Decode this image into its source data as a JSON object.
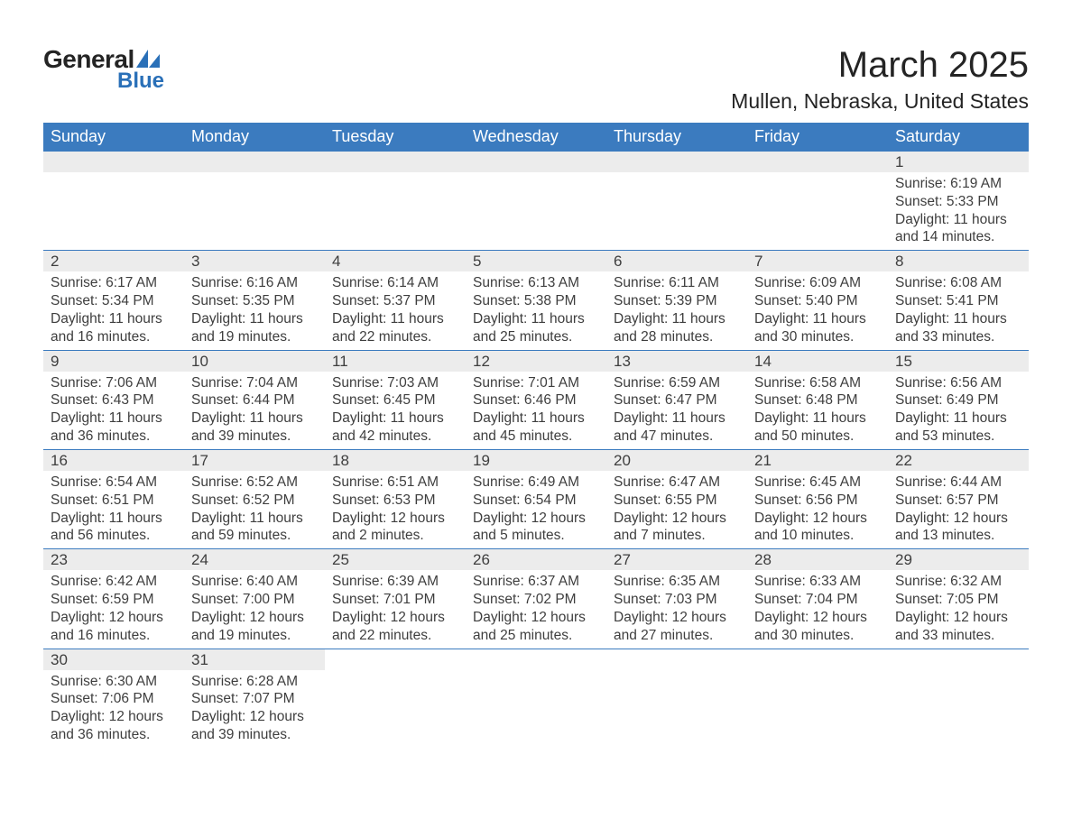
{
  "logo": {
    "text_general": "General",
    "text_blue": "Blue",
    "icon_color": "#2a70b8"
  },
  "title": {
    "month": "March 2025",
    "location": "Mullen, Nebraska, United States"
  },
  "colors": {
    "header_bg": "#3b7bbf",
    "header_text": "#ffffff",
    "daynum_bg": "#ececec",
    "text": "#3e3e3e",
    "divider": "#3b7bbf",
    "page_bg": "#ffffff"
  },
  "layout": {
    "columns": 7,
    "rows": 6,
    "cell_font_size_pt": 11,
    "header_font_size_pt": 13,
    "title_font_size_pt": 30,
    "location_font_size_pt": 17
  },
  "day_headers": [
    "Sunday",
    "Monday",
    "Tuesday",
    "Wednesday",
    "Thursday",
    "Friday",
    "Saturday"
  ],
  "weeks": [
    [
      {
        "empty": true
      },
      {
        "empty": true
      },
      {
        "empty": true
      },
      {
        "empty": true
      },
      {
        "empty": true
      },
      {
        "empty": true
      },
      {
        "num": "1",
        "sunrise": "Sunrise: 6:19 AM",
        "sunset": "Sunset: 5:33 PM",
        "daylight1": "Daylight: 11 hours",
        "daylight2": "and 14 minutes."
      }
    ],
    [
      {
        "num": "2",
        "sunrise": "Sunrise: 6:17 AM",
        "sunset": "Sunset: 5:34 PM",
        "daylight1": "Daylight: 11 hours",
        "daylight2": "and 16 minutes."
      },
      {
        "num": "3",
        "sunrise": "Sunrise: 6:16 AM",
        "sunset": "Sunset: 5:35 PM",
        "daylight1": "Daylight: 11 hours",
        "daylight2": "and 19 minutes."
      },
      {
        "num": "4",
        "sunrise": "Sunrise: 6:14 AM",
        "sunset": "Sunset: 5:37 PM",
        "daylight1": "Daylight: 11 hours",
        "daylight2": "and 22 minutes."
      },
      {
        "num": "5",
        "sunrise": "Sunrise: 6:13 AM",
        "sunset": "Sunset: 5:38 PM",
        "daylight1": "Daylight: 11 hours",
        "daylight2": "and 25 minutes."
      },
      {
        "num": "6",
        "sunrise": "Sunrise: 6:11 AM",
        "sunset": "Sunset: 5:39 PM",
        "daylight1": "Daylight: 11 hours",
        "daylight2": "and 28 minutes."
      },
      {
        "num": "7",
        "sunrise": "Sunrise: 6:09 AM",
        "sunset": "Sunset: 5:40 PM",
        "daylight1": "Daylight: 11 hours",
        "daylight2": "and 30 minutes."
      },
      {
        "num": "8",
        "sunrise": "Sunrise: 6:08 AM",
        "sunset": "Sunset: 5:41 PM",
        "daylight1": "Daylight: 11 hours",
        "daylight2": "and 33 minutes."
      }
    ],
    [
      {
        "num": "9",
        "sunrise": "Sunrise: 7:06 AM",
        "sunset": "Sunset: 6:43 PM",
        "daylight1": "Daylight: 11 hours",
        "daylight2": "and 36 minutes."
      },
      {
        "num": "10",
        "sunrise": "Sunrise: 7:04 AM",
        "sunset": "Sunset: 6:44 PM",
        "daylight1": "Daylight: 11 hours",
        "daylight2": "and 39 minutes."
      },
      {
        "num": "11",
        "sunrise": "Sunrise: 7:03 AM",
        "sunset": "Sunset: 6:45 PM",
        "daylight1": "Daylight: 11 hours",
        "daylight2": "and 42 minutes."
      },
      {
        "num": "12",
        "sunrise": "Sunrise: 7:01 AM",
        "sunset": "Sunset: 6:46 PM",
        "daylight1": "Daylight: 11 hours",
        "daylight2": "and 45 minutes."
      },
      {
        "num": "13",
        "sunrise": "Sunrise: 6:59 AM",
        "sunset": "Sunset: 6:47 PM",
        "daylight1": "Daylight: 11 hours",
        "daylight2": "and 47 minutes."
      },
      {
        "num": "14",
        "sunrise": "Sunrise: 6:58 AM",
        "sunset": "Sunset: 6:48 PM",
        "daylight1": "Daylight: 11 hours",
        "daylight2": "and 50 minutes."
      },
      {
        "num": "15",
        "sunrise": "Sunrise: 6:56 AM",
        "sunset": "Sunset: 6:49 PM",
        "daylight1": "Daylight: 11 hours",
        "daylight2": "and 53 minutes."
      }
    ],
    [
      {
        "num": "16",
        "sunrise": "Sunrise: 6:54 AM",
        "sunset": "Sunset: 6:51 PM",
        "daylight1": "Daylight: 11 hours",
        "daylight2": "and 56 minutes."
      },
      {
        "num": "17",
        "sunrise": "Sunrise: 6:52 AM",
        "sunset": "Sunset: 6:52 PM",
        "daylight1": "Daylight: 11 hours",
        "daylight2": "and 59 minutes."
      },
      {
        "num": "18",
        "sunrise": "Sunrise: 6:51 AM",
        "sunset": "Sunset: 6:53 PM",
        "daylight1": "Daylight: 12 hours",
        "daylight2": "and 2 minutes."
      },
      {
        "num": "19",
        "sunrise": "Sunrise: 6:49 AM",
        "sunset": "Sunset: 6:54 PM",
        "daylight1": "Daylight: 12 hours",
        "daylight2": "and 5 minutes."
      },
      {
        "num": "20",
        "sunrise": "Sunrise: 6:47 AM",
        "sunset": "Sunset: 6:55 PM",
        "daylight1": "Daylight: 12 hours",
        "daylight2": "and 7 minutes."
      },
      {
        "num": "21",
        "sunrise": "Sunrise: 6:45 AM",
        "sunset": "Sunset: 6:56 PM",
        "daylight1": "Daylight: 12 hours",
        "daylight2": "and 10 minutes."
      },
      {
        "num": "22",
        "sunrise": "Sunrise: 6:44 AM",
        "sunset": "Sunset: 6:57 PM",
        "daylight1": "Daylight: 12 hours",
        "daylight2": "and 13 minutes."
      }
    ],
    [
      {
        "num": "23",
        "sunrise": "Sunrise: 6:42 AM",
        "sunset": "Sunset: 6:59 PM",
        "daylight1": "Daylight: 12 hours",
        "daylight2": "and 16 minutes."
      },
      {
        "num": "24",
        "sunrise": "Sunrise: 6:40 AM",
        "sunset": "Sunset: 7:00 PM",
        "daylight1": "Daylight: 12 hours",
        "daylight2": "and 19 minutes."
      },
      {
        "num": "25",
        "sunrise": "Sunrise: 6:39 AM",
        "sunset": "Sunset: 7:01 PM",
        "daylight1": "Daylight: 12 hours",
        "daylight2": "and 22 minutes."
      },
      {
        "num": "26",
        "sunrise": "Sunrise: 6:37 AM",
        "sunset": "Sunset: 7:02 PM",
        "daylight1": "Daylight: 12 hours",
        "daylight2": "and 25 minutes."
      },
      {
        "num": "27",
        "sunrise": "Sunrise: 6:35 AM",
        "sunset": "Sunset: 7:03 PM",
        "daylight1": "Daylight: 12 hours",
        "daylight2": "and 27 minutes."
      },
      {
        "num": "28",
        "sunrise": "Sunrise: 6:33 AM",
        "sunset": "Sunset: 7:04 PM",
        "daylight1": "Daylight: 12 hours",
        "daylight2": "and 30 minutes."
      },
      {
        "num": "29",
        "sunrise": "Sunrise: 6:32 AM",
        "sunset": "Sunset: 7:05 PM",
        "daylight1": "Daylight: 12 hours",
        "daylight2": "and 33 minutes."
      }
    ],
    [
      {
        "num": "30",
        "sunrise": "Sunrise: 6:30 AM",
        "sunset": "Sunset: 7:06 PM",
        "daylight1": "Daylight: 12 hours",
        "daylight2": "and 36 minutes."
      },
      {
        "num": "31",
        "sunrise": "Sunrise: 6:28 AM",
        "sunset": "Sunset: 7:07 PM",
        "daylight1": "Daylight: 12 hours",
        "daylight2": "and 39 minutes."
      },
      {
        "empty": true
      },
      {
        "empty": true
      },
      {
        "empty": true
      },
      {
        "empty": true
      },
      {
        "empty": true
      }
    ]
  ]
}
